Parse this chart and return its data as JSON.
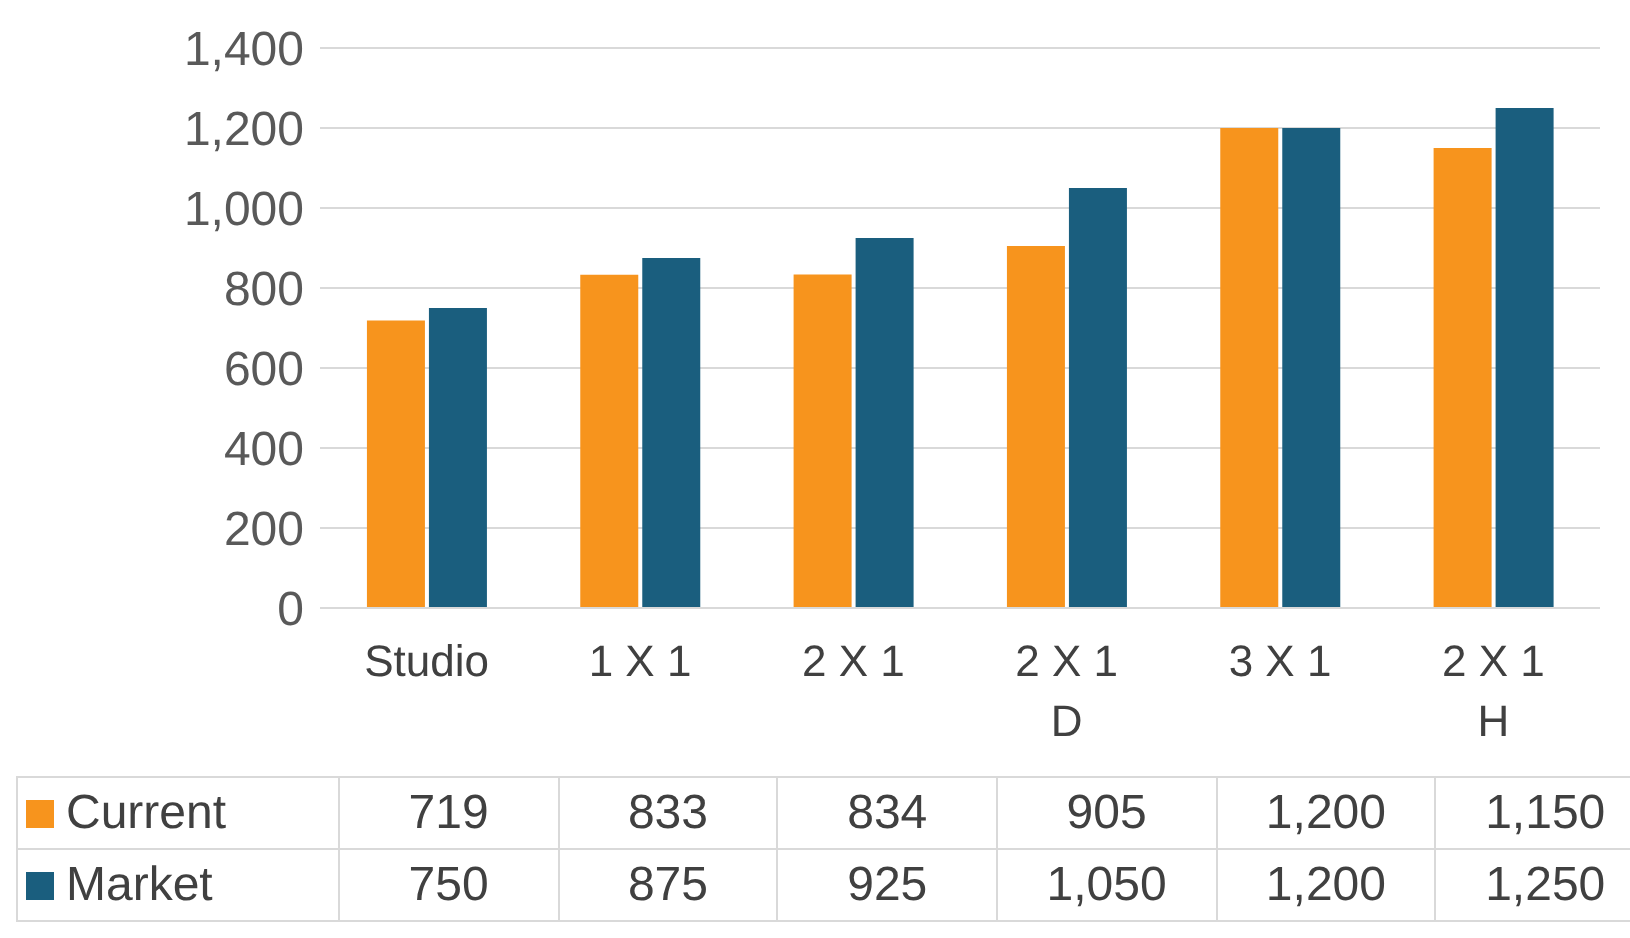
{
  "chart_data": {
    "type": "bar",
    "categories": [
      "Studio",
      "1 X 1",
      "2 X 1",
      "2 X 1 D",
      "3 X 1",
      "2 X 1 H"
    ],
    "series": [
      {
        "name": "Current",
        "color": "#f7941d",
        "values": [
          719,
          833,
          834,
          905,
          1200,
          1150
        ],
        "value_labels": [
          "719",
          "833",
          "834",
          "905",
          "1,200",
          "1,150"
        ]
      },
      {
        "name": "Market",
        "color": "#1a5e7e",
        "values": [
          750,
          875,
          925,
          1050,
          1200,
          1250
        ],
        "value_labels": [
          "750",
          "875",
          "925",
          "1,050",
          "1,200",
          "1,250"
        ]
      }
    ],
    "ylim": [
      0,
      1400
    ],
    "yticks": [
      0,
      200,
      400,
      600,
      800,
      {
        "value": 1000,
        "label": "1,000"
      },
      {
        "value": 1200,
        "label": "1,200"
      },
      {
        "value": 1400,
        "label": "1,400"
      }
    ],
    "grid": "y",
    "legend": "bottom left"
  }
}
